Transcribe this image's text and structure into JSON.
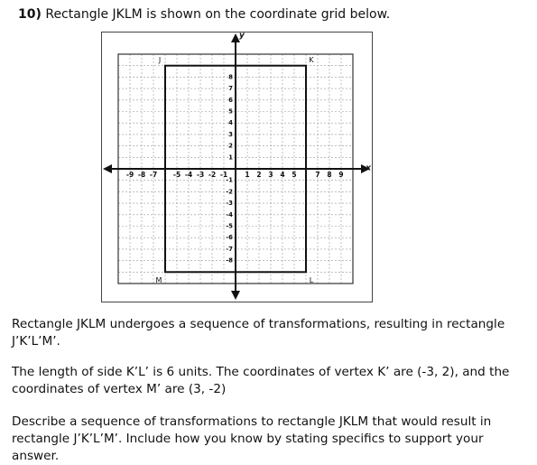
{
  "question": {
    "number": "10)",
    "text": "Rectangle JKLM is shown on the coordinate grid below."
  },
  "grid": {
    "x_axis_label": "x",
    "y_axis_label": "y",
    "x_tick_labels": [
      "-9",
      "-8",
      "-7",
      "-5",
      "-4",
      "-3",
      "-2",
      "-1",
      "1",
      "2",
      "3",
      "4",
      "5",
      "7",
      "8",
      "9"
    ],
    "y_tick_labels": [
      "8",
      "7",
      "6",
      "5",
      "4",
      "3",
      "2",
      "1",
      "-1",
      "-2",
      "-3",
      "-4",
      "-5",
      "-6",
      "-7",
      "-8"
    ],
    "vertices": [
      "J",
      "K",
      "L",
      "M"
    ]
  },
  "paragraphs": [
    "Rectangle JKLM undergoes a sequence of transformations, resulting in rectangle J’K’L’M’.",
    "The length of side K’L’ is 6 units. The coordinates of vertex K’ are (-3, 2), and the coordinates of vertex M’ are (3, -2)",
    "Describe a sequence of transformations to rectangle JKLM that would result in rectangle J’K’L’M’. Include how you know by stating specifics to support your answer."
  ]
}
